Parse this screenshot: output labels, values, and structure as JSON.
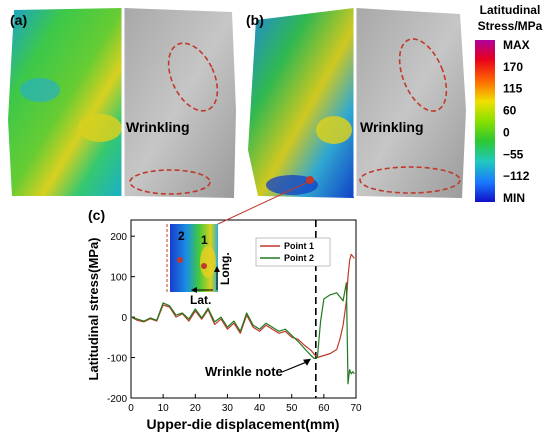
{
  "panels": {
    "a_label": "(a)",
    "b_label": "(b)",
    "c_label": "(c)",
    "wrinkling_a": "Wrinkling",
    "wrinkling_b": "Wrinkling"
  },
  "colorbar": {
    "title_line1": "Latitudinal",
    "title_line2": "Stress/MPa",
    "ticks": [
      "MAX",
      "170",
      "115",
      "60",
      "0",
      "−55",
      "−112",
      "MIN"
    ],
    "colors": [
      "#b0009a",
      "#e8001c",
      "#ff6600",
      "#f0e000",
      "#8ae000",
      "#2ec82e",
      "#20c8c0",
      "#1a78ff",
      "#1010c8"
    ]
  },
  "inset": {
    "point1": "1",
    "point2": "2",
    "long_label": "Long.",
    "lat_label": "Lat."
  },
  "colors": {
    "point1": "#c0392b",
    "point2": "#1f7a1f",
    "annotation_ellipse": "#c0392b"
  },
  "chart_data": {
    "type": "line",
    "xlabel": "Upper-die displacement(mm)",
    "ylabel": "Latitudinal stress(MPa)",
    "xlim": [
      0,
      70
    ],
    "ylim": [
      -200,
      240
    ],
    "xticks": [
      0,
      10,
      20,
      30,
      40,
      50,
      60,
      70
    ],
    "yticks": [
      -200,
      -100,
      0,
      100,
      200
    ],
    "legend_position": "top-right",
    "vline_x": 57.5,
    "annotation": {
      "text": "Wrinkle note",
      "x": 56,
      "y": -103
    },
    "series": [
      {
        "name": "Point 1",
        "color": "#c0392b",
        "x": [
          0,
          2,
          4,
          6,
          8,
          10,
          12,
          14,
          16,
          18,
          20,
          22,
          24,
          26,
          28,
          30,
          32,
          34,
          36,
          38,
          40,
          42,
          44,
          46,
          48,
          50,
          52,
          54,
          56,
          57,
          58,
          60,
          62,
          64,
          65,
          66,
          67,
          67.5,
          68,
          68.5,
          69,
          69.5
        ],
        "y": [
          0,
          -8,
          -12,
          -4,
          -10,
          30,
          25,
          0,
          8,
          -10,
          15,
          -5,
          18,
          -18,
          -5,
          -30,
          -15,
          -40,
          5,
          -25,
          -35,
          -20,
          -30,
          -40,
          -35,
          -50,
          -55,
          -70,
          -82,
          -92,
          -100,
          -95,
          -90,
          -80,
          -55,
          -20,
          40,
          100,
          140,
          155,
          150,
          145
        ]
      },
      {
        "name": "Point 2",
        "color": "#1f7a1f",
        "x": [
          0,
          2,
          4,
          6,
          8,
          10,
          12,
          14,
          16,
          18,
          20,
          22,
          24,
          26,
          28,
          30,
          32,
          34,
          36,
          38,
          40,
          42,
          44,
          46,
          48,
          50,
          52,
          54,
          56,
          57,
          58,
          59,
          60,
          62,
          64,
          66,
          67,
          67.5,
          68,
          68.5,
          69,
          69.5
        ],
        "y": [
          0,
          -5,
          -10,
          -2,
          -8,
          35,
          28,
          5,
          10,
          -5,
          20,
          -2,
          22,
          -12,
          0,
          -25,
          -10,
          -35,
          10,
          -20,
          -30,
          -15,
          -25,
          -35,
          -30,
          -45,
          -60,
          -78,
          -95,
          -102,
          -100,
          -10,
          45,
          55,
          60,
          40,
          85,
          -165,
          -130,
          -140,
          -135,
          -140
        ]
      }
    ]
  }
}
